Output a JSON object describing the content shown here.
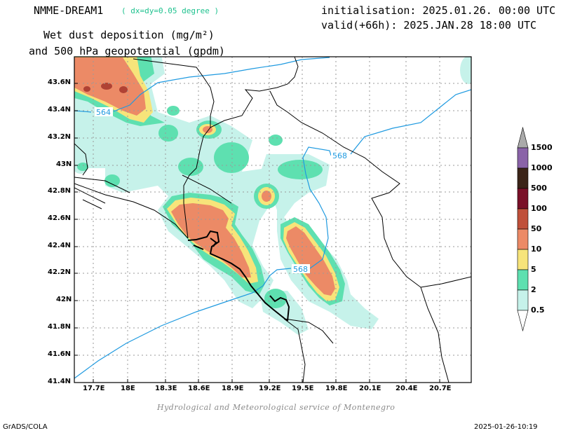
{
  "header": {
    "model": "NMME-DREAM1",
    "resolution": "( dx=dy=0.05 degree )",
    "title_line1": "Wet dust deposition (mg/m²)",
    "title_line2": "and 500 hPa geopotential (gpdm)",
    "init": "initialisation: 2025.01.26. 00:00 UTC",
    "valid": "valid(+66h): 2025.JAN.28 18:00 UTC"
  },
  "axes": {
    "x_ticks": [
      "17.7E",
      "18E",
      "18.3E",
      "18.6E",
      "18.9E",
      "19.2E",
      "19.5E",
      "19.8E",
      "20.1E",
      "20.4E",
      "20.7E"
    ],
    "x_values": [
      17.7,
      18.0,
      18.3,
      18.6,
      18.9,
      19.2,
      19.5,
      19.8,
      20.1,
      20.4,
      20.7
    ],
    "y_ticks": [
      "43.6N",
      "43.4N",
      "43.2N",
      "43N",
      "42.8N",
      "42.6N",
      "42.4N",
      "42.2N",
      "42N",
      "41.8N",
      "41.6N",
      "41.4N"
    ],
    "y_values": [
      43.6,
      43.4,
      43.2,
      43.0,
      42.8,
      42.6,
      42.4,
      42.2,
      42.0,
      41.8,
      41.6,
      41.4
    ],
    "lon_range": [
      17.55,
      21.05
    ],
    "lat_range": [
      41.4,
      43.78
    ]
  },
  "contours": [
    {
      "label": "564",
      "value": 564
    },
    {
      "label": "568",
      "value": 568
    },
    {
      "label": "568",
      "value": 568
    }
  ],
  "legend": {
    "levels": [
      "1500",
      "1000",
      "500",
      "100",
      "50",
      "10",
      "5",
      "2",
      "0.5"
    ],
    "colors": [
      "#aaaaaa",
      "#8a63a8",
      "#3b2418",
      "#7a1028",
      "#c0503a",
      "#ec8a66",
      "#f7e47a",
      "#5ee0b0",
      "#c6f2ea"
    ]
  },
  "footer": {
    "credit": "Hydrological and Meteorological service of Montenegro",
    "left": "GrADS/COLA",
    "right": "2025-01-26-10:19"
  }
}
